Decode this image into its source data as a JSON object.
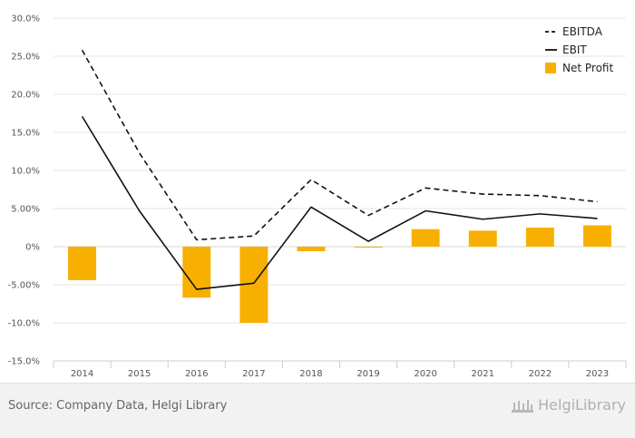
{
  "chart_data": {
    "type": "bar+line",
    "categories": [
      "2014",
      "2015",
      "2016",
      "2017",
      "2018",
      "2019",
      "2020",
      "2021",
      "2022",
      "2023"
    ],
    "ylim": [
      -15,
      30
    ],
    "yticks": [
      -15,
      -10,
      -5,
      0,
      5,
      10,
      15,
      20,
      25,
      30
    ],
    "ytick_labels": [
      "-15.0%",
      "-10.0%",
      "-5.00%",
      "0%",
      "5.00%",
      "10.0%",
      "15.0%",
      "20.0%",
      "25.0%",
      "30.0%"
    ],
    "series": [
      {
        "name": "EBITDA",
        "type": "line",
        "style": "dashed",
        "color": "#111111",
        "values": [
          25.8,
          12.3,
          0.9,
          1.4,
          8.8,
          4.1,
          7.7,
          6.9,
          6.7,
          5.9
        ]
      },
      {
        "name": "EBIT",
        "type": "line",
        "style": "solid",
        "color": "#111111",
        "values": [
          17.1,
          4.7,
          -5.6,
          -4.8,
          5.2,
          0.7,
          4.7,
          3.6,
          4.3,
          3.7
        ]
      },
      {
        "name": "Net Profit",
        "type": "bar",
        "color": "#f8b000",
        "values": [
          -4.4,
          0.0,
          -6.7,
          -10.0,
          -0.6,
          -0.1,
          2.3,
          2.1,
          2.5,
          2.8
        ]
      }
    ],
    "legend_position": "top-right",
    "grid": true
  },
  "footer": {
    "source": "Source: Company Data, Helgi Library",
    "brand": "HelgiLibrary"
  }
}
